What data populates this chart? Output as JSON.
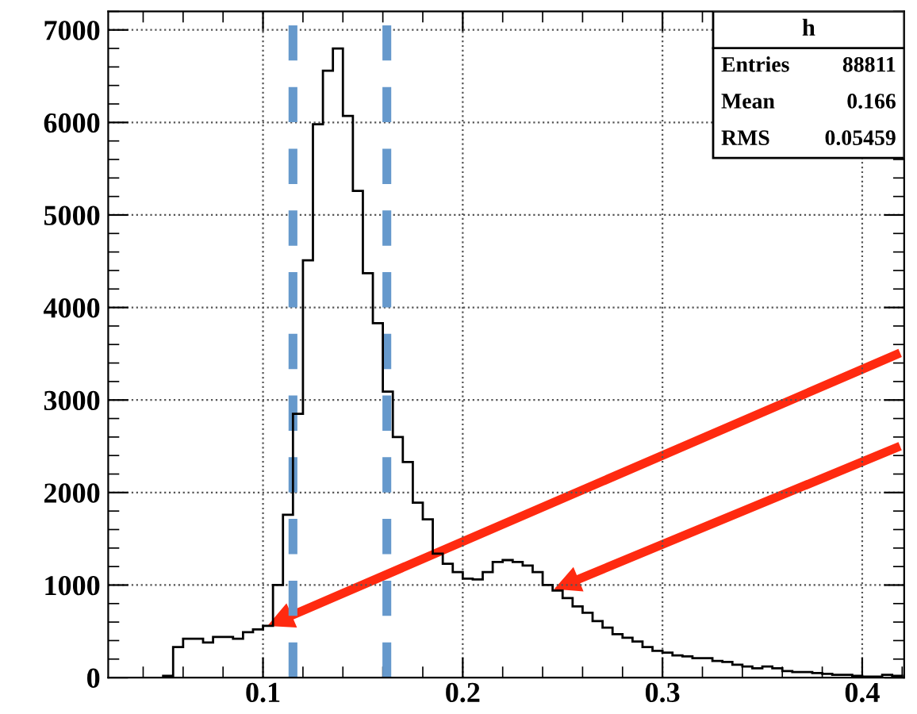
{
  "chart_data": {
    "type": "histogram",
    "bins": [
      0.05,
      0.055,
      0.06,
      0.065,
      0.07,
      0.075,
      0.08,
      0.085,
      0.09,
      0.095,
      0.1,
      0.105,
      0.11,
      0.115,
      0.12,
      0.125,
      0.13,
      0.135,
      0.14,
      0.145,
      0.15,
      0.155,
      0.16,
      0.165,
      0.17,
      0.175,
      0.18,
      0.185,
      0.19,
      0.195,
      0.2,
      0.205,
      0.21,
      0.215,
      0.22,
      0.225,
      0.23,
      0.235,
      0.24,
      0.245,
      0.25,
      0.255,
      0.26,
      0.265,
      0.27,
      0.275,
      0.28,
      0.285,
      0.29,
      0.295,
      0.3,
      0.305,
      0.31,
      0.315,
      0.32,
      0.325,
      0.33,
      0.335,
      0.34,
      0.345,
      0.35,
      0.355,
      0.36,
      0.365,
      0.37,
      0.375,
      0.38,
      0.385,
      0.39,
      0.395,
      0.4,
      0.405,
      0.41,
      0.415,
      0.42
    ],
    "values": [
      20,
      330,
      420,
      420,
      380,
      440,
      440,
      420,
      490,
      520,
      560,
      1000,
      1760,
      2850,
      4510,
      5980,
      6560,
      6800,
      6070,
      5260,
      4370,
      3830,
      3090,
      2600,
      2330,
      1890,
      1710,
      1340,
      1230,
      1140,
      1070,
      1060,
      1140,
      1250,
      1270,
      1250,
      1210,
      1140,
      1000,
      940,
      860,
      770,
      700,
      610,
      540,
      470,
      430,
      390,
      330,
      290,
      270,
      240,
      230,
      210,
      210,
      180,
      170,
      140,
      120,
      100,
      120,
      100,
      70,
      60,
      60,
      50,
      40,
      30,
      30,
      20,
      10,
      10,
      30,
      20
    ],
    "color": "#000000",
    "xlim": [
      0.0225,
      0.421
    ],
    "ylim": [
      0,
      7200
    ],
    "xticks": [
      0.1,
      0.2,
      0.3,
      0.4
    ],
    "yticks": [
      0,
      1000,
      2000,
      3000,
      4000,
      5000,
      6000,
      7000
    ],
    "grid": true,
    "ref_lines": [
      {
        "axis": "x",
        "value": 0.115,
        "color": "#6699cc",
        "line_style": "dashed"
      },
      {
        "axis": "x",
        "value": 0.162,
        "color": "#6699cc",
        "line_style": "dashed"
      }
    ],
    "annotations": [
      "h",
      "Entries",
      "88811",
      "Mean",
      "0.166",
      "RMS",
      "0.05459"
    ]
  }
}
